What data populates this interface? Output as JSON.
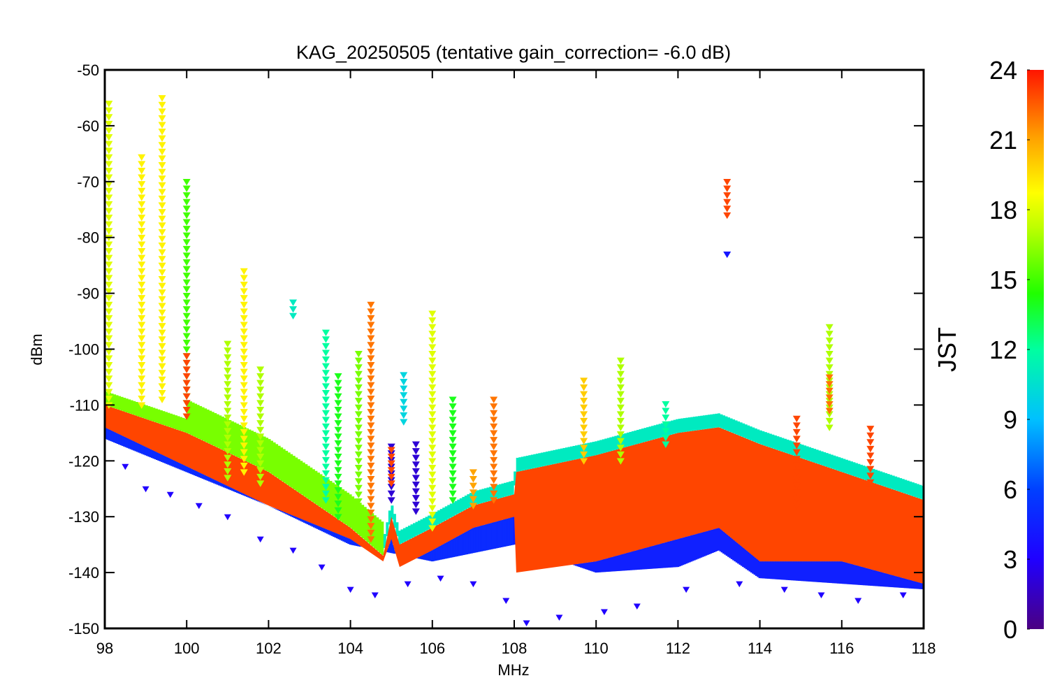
{
  "chart_data": {
    "type": "scatter",
    "title": "KAG_20250505 (tentative gain_correction= -6.0 dB)",
    "xlabel": "MHz",
    "ylabel": "dBm",
    "xlim": [
      98,
      118
    ],
    "ylim": [
      -150,
      -50
    ],
    "xticks": [
      98,
      100,
      102,
      104,
      106,
      108,
      110,
      112,
      114,
      116,
      118
    ],
    "yticks": [
      -50,
      -60,
      -70,
      -80,
      -90,
      -100,
      -110,
      -120,
      -130,
      -140,
      -150
    ],
    "colorbar": {
      "label": "JST",
      "range": [
        0,
        24
      ],
      "ticks": [
        0,
        3,
        6,
        9,
        12,
        15,
        18,
        21,
        24
      ],
      "colormap": "rainbow"
    },
    "marker": "triangle-down",
    "noise_floor": {
      "note": "red noise floor envelope (JST ~22-23)",
      "x": [
        98,
        100,
        102,
        104,
        104.8,
        105.0,
        105.2,
        106,
        107,
        108,
        108.05,
        110,
        112,
        113,
        114,
        116,
        118
      ],
      "y_top": [
        -110,
        -115,
        -122,
        -132,
        -137,
        -130,
        -135,
        -132,
        -128,
        -126,
        -122,
        -119,
        -115,
        -114,
        -117,
        -122,
        -127
      ],
      "y_bottom": [
        -114,
        -121,
        -128,
        -134,
        -138,
        -134,
        -139,
        -136,
        -132,
        -130,
        -140,
        -138,
        -134,
        -132,
        -138,
        -138,
        -142
      ]
    },
    "floor_daytime_blue_below": [
      {
        "x": 98,
        "y": -116
      },
      {
        "x": 100,
        "y": -122
      },
      {
        "x": 102,
        "y": -128
      },
      {
        "x": 104,
        "y": -135
      },
      {
        "x": 106,
        "y": -138
      },
      {
        "x": 108,
        "y": -135
      },
      {
        "x": 110,
        "y": -140
      },
      {
        "x": 112,
        "y": -139
      },
      {
        "x": 113,
        "y": -136
      },
      {
        "x": 114,
        "y": -141
      },
      {
        "x": 116,
        "y": -142
      },
      {
        "x": 118,
        "y": -143
      }
    ],
    "signals": [
      {
        "freq": 98.1,
        "top": -56,
        "bottom": -110,
        "jst": 18
      },
      {
        "freq": 98.9,
        "top": -65,
        "bottom": -110,
        "jst": 19
      },
      {
        "freq": 99.4,
        "top": -54,
        "bottom": -109,
        "jst": 19
      },
      {
        "freq": 100.0,
        "top": -69,
        "bottom": -112,
        "jst": 15
      },
      {
        "freq": 100.0,
        "top": -101,
        "bottom": -112,
        "jst": 23
      },
      {
        "freq": 101.0,
        "top": -98,
        "bottom": -123,
        "jst": 17
      },
      {
        "freq": 101.4,
        "top": -86,
        "bottom": -122,
        "jst": 19
      },
      {
        "freq": 101.8,
        "top": -103,
        "bottom": -124,
        "jst": 17
      },
      {
        "freq": 102.6,
        "top": -91,
        "bottom": -94,
        "jst": 11
      },
      {
        "freq": 103.4,
        "top": -96,
        "bottom": -127,
        "jst": 12
      },
      {
        "freq": 103.7,
        "top": -104,
        "bottom": -130,
        "jst": 14
      },
      {
        "freq": 104.2,
        "top": -100,
        "bottom": -132,
        "jst": 16
      },
      {
        "freq": 104.5,
        "top": -92,
        "bottom": -134,
        "jst": 22
      },
      {
        "freq": 105.0,
        "top": -117,
        "bottom": -127,
        "jst": 2
      },
      {
        "freq": 105.0,
        "top": -118,
        "bottom": -124,
        "jst": 23
      },
      {
        "freq": 105.3,
        "top": -104,
        "bottom": -113,
        "jst": 10
      },
      {
        "freq": 105.6,
        "top": -116,
        "bottom": -129,
        "jst": 2
      },
      {
        "freq": 106.0,
        "top": -93,
        "bottom": -132,
        "jst": 18
      },
      {
        "freq": 106.5,
        "top": -109,
        "bottom": -127,
        "jst": 14
      },
      {
        "freq": 107.0,
        "top": -121,
        "bottom": -128,
        "jst": 21
      },
      {
        "freq": 107.5,
        "top": -109,
        "bottom": -127,
        "jst": 22
      },
      {
        "freq": 109.7,
        "top": -105,
        "bottom": -120,
        "jst": 20
      },
      {
        "freq": 110.6,
        "top": -101,
        "bottom": -120,
        "jst": 17
      },
      {
        "freq": 111.7,
        "top": -109,
        "bottom": -117,
        "jst": 12
      },
      {
        "freq": 113.2,
        "top": -69,
        "bottom": -76,
        "jst": 23
      },
      {
        "freq": 113.2,
        "top": -82,
        "bottom": -83,
        "jst": 4
      },
      {
        "freq": 114.9,
        "top": -112,
        "bottom": -128,
        "jst": 23
      },
      {
        "freq": 115.7,
        "top": -95,
        "bottom": -114,
        "jst": 17
      },
      {
        "freq": 115.7,
        "top": -104,
        "bottom": -111,
        "jst": 22
      },
      {
        "freq": 116.7,
        "top": -114,
        "bottom": -125,
        "jst": 23
      }
    ],
    "scattered_night_points_jst_3": [
      {
        "x": 98.5,
        "y": -121
      },
      {
        "x": 99.0,
        "y": -125
      },
      {
        "x": 99.6,
        "y": -126
      },
      {
        "x": 100.3,
        "y": -128
      },
      {
        "x": 101.0,
        "y": -130
      },
      {
        "x": 101.8,
        "y": -134
      },
      {
        "x": 102.6,
        "y": -136
      },
      {
        "x": 103.3,
        "y": -139
      },
      {
        "x": 104.0,
        "y": -143
      },
      {
        "x": 104.6,
        "y": -144
      },
      {
        "x": 105.4,
        "y": -142
      },
      {
        "x": 106.2,
        "y": -141
      },
      {
        "x": 107.0,
        "y": -142
      },
      {
        "x": 107.8,
        "y": -145
      },
      {
        "x": 108.3,
        "y": -149
      },
      {
        "x": 109.1,
        "y": -148
      },
      {
        "x": 110.2,
        "y": -147
      },
      {
        "x": 111.0,
        "y": -146
      },
      {
        "x": 112.2,
        "y": -143
      },
      {
        "x": 113.5,
        "y": -142
      },
      {
        "x": 114.6,
        "y": -143
      },
      {
        "x": 115.5,
        "y": -144
      },
      {
        "x": 116.4,
        "y": -145
      },
      {
        "x": 117.5,
        "y": -144
      }
    ]
  }
}
